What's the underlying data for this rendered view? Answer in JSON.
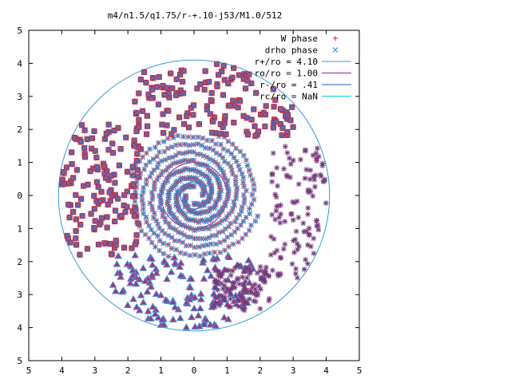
{
  "chart_data": {
    "type": "scatter",
    "title": "m4/n1.5/q1.75/r-+.10-j53/M1.0/512",
    "xlim": [
      -5,
      5
    ],
    "ylim": [
      -5,
      5
    ],
    "xticks": [
      -5,
      -4,
      -3,
      -2,
      -1,
      0,
      1,
      2,
      3,
      4,
      5
    ],
    "yticks": [
      5,
      4,
      3,
      2,
      1,
      0,
      -1,
      -2,
      -3,
      -4,
      -5
    ],
    "xtick_labels": [
      "5",
      "4",
      "3",
      "2",
      "1",
      "0",
      "1",
      "2",
      "3",
      "4",
      "5"
    ],
    "ytick_labels": [
      "5",
      "4",
      "3",
      "2",
      "1",
      "0",
      "1",
      "2",
      "3",
      "4",
      "5"
    ],
    "grid": false,
    "legend_position": "top-right",
    "series": [
      {
        "name": "W phase",
        "marker": "plus",
        "color": "#e41a1c",
        "note_shape": "mixed square/triangle/asterisk clusters"
      },
      {
        "name": "drho phase",
        "marker": "cross",
        "color": "#3b8fe0"
      },
      {
        "name": "r+/ro = 4.10",
        "kind": "circle",
        "radius": 4.1,
        "color": "#3399dd"
      },
      {
        "name": "ro/ro = 1.00",
        "kind": "circle",
        "radius": 1.0,
        "color": "#a0207a"
      },
      {
        "name": "r-/ro = .41",
        "kind": "circle",
        "radius": 0.41,
        "color": "#1f55cc"
      },
      {
        "name": "rc/ro = NaN",
        "kind": "circle",
        "radius": null,
        "color": "#00d0d0"
      }
    ],
    "spiral": {
      "arms": 4,
      "r_inner": 0.25,
      "r_outer": 2.0,
      "turns": 1.7
    },
    "clusters": [
      {
        "region": "upper-right",
        "shape": "square",
        "x_range": [
          -1.8,
          3.2
        ],
        "y_range": [
          1.8,
          4.0
        ]
      },
      {
        "region": "left",
        "shape": "square",
        "x_range": [
          -4.0,
          -1.6
        ],
        "y_range": [
          -1.8,
          2.3
        ]
      },
      {
        "region": "right",
        "shape": "asterisk",
        "x_range": [
          2.3,
          4.0
        ],
        "y_range": [
          -2.5,
          1.5
        ]
      },
      {
        "region": "lower",
        "shape": "triangle",
        "x_range": [
          -2.5,
          1.8
        ],
        "y_range": [
          -4.0,
          -1.8
        ]
      },
      {
        "region": "lower-right",
        "shape": "asterisk",
        "x_range": [
          0.6,
          2.3
        ],
        "y_range": [
          -3.5,
          -2.1
        ]
      }
    ]
  }
}
